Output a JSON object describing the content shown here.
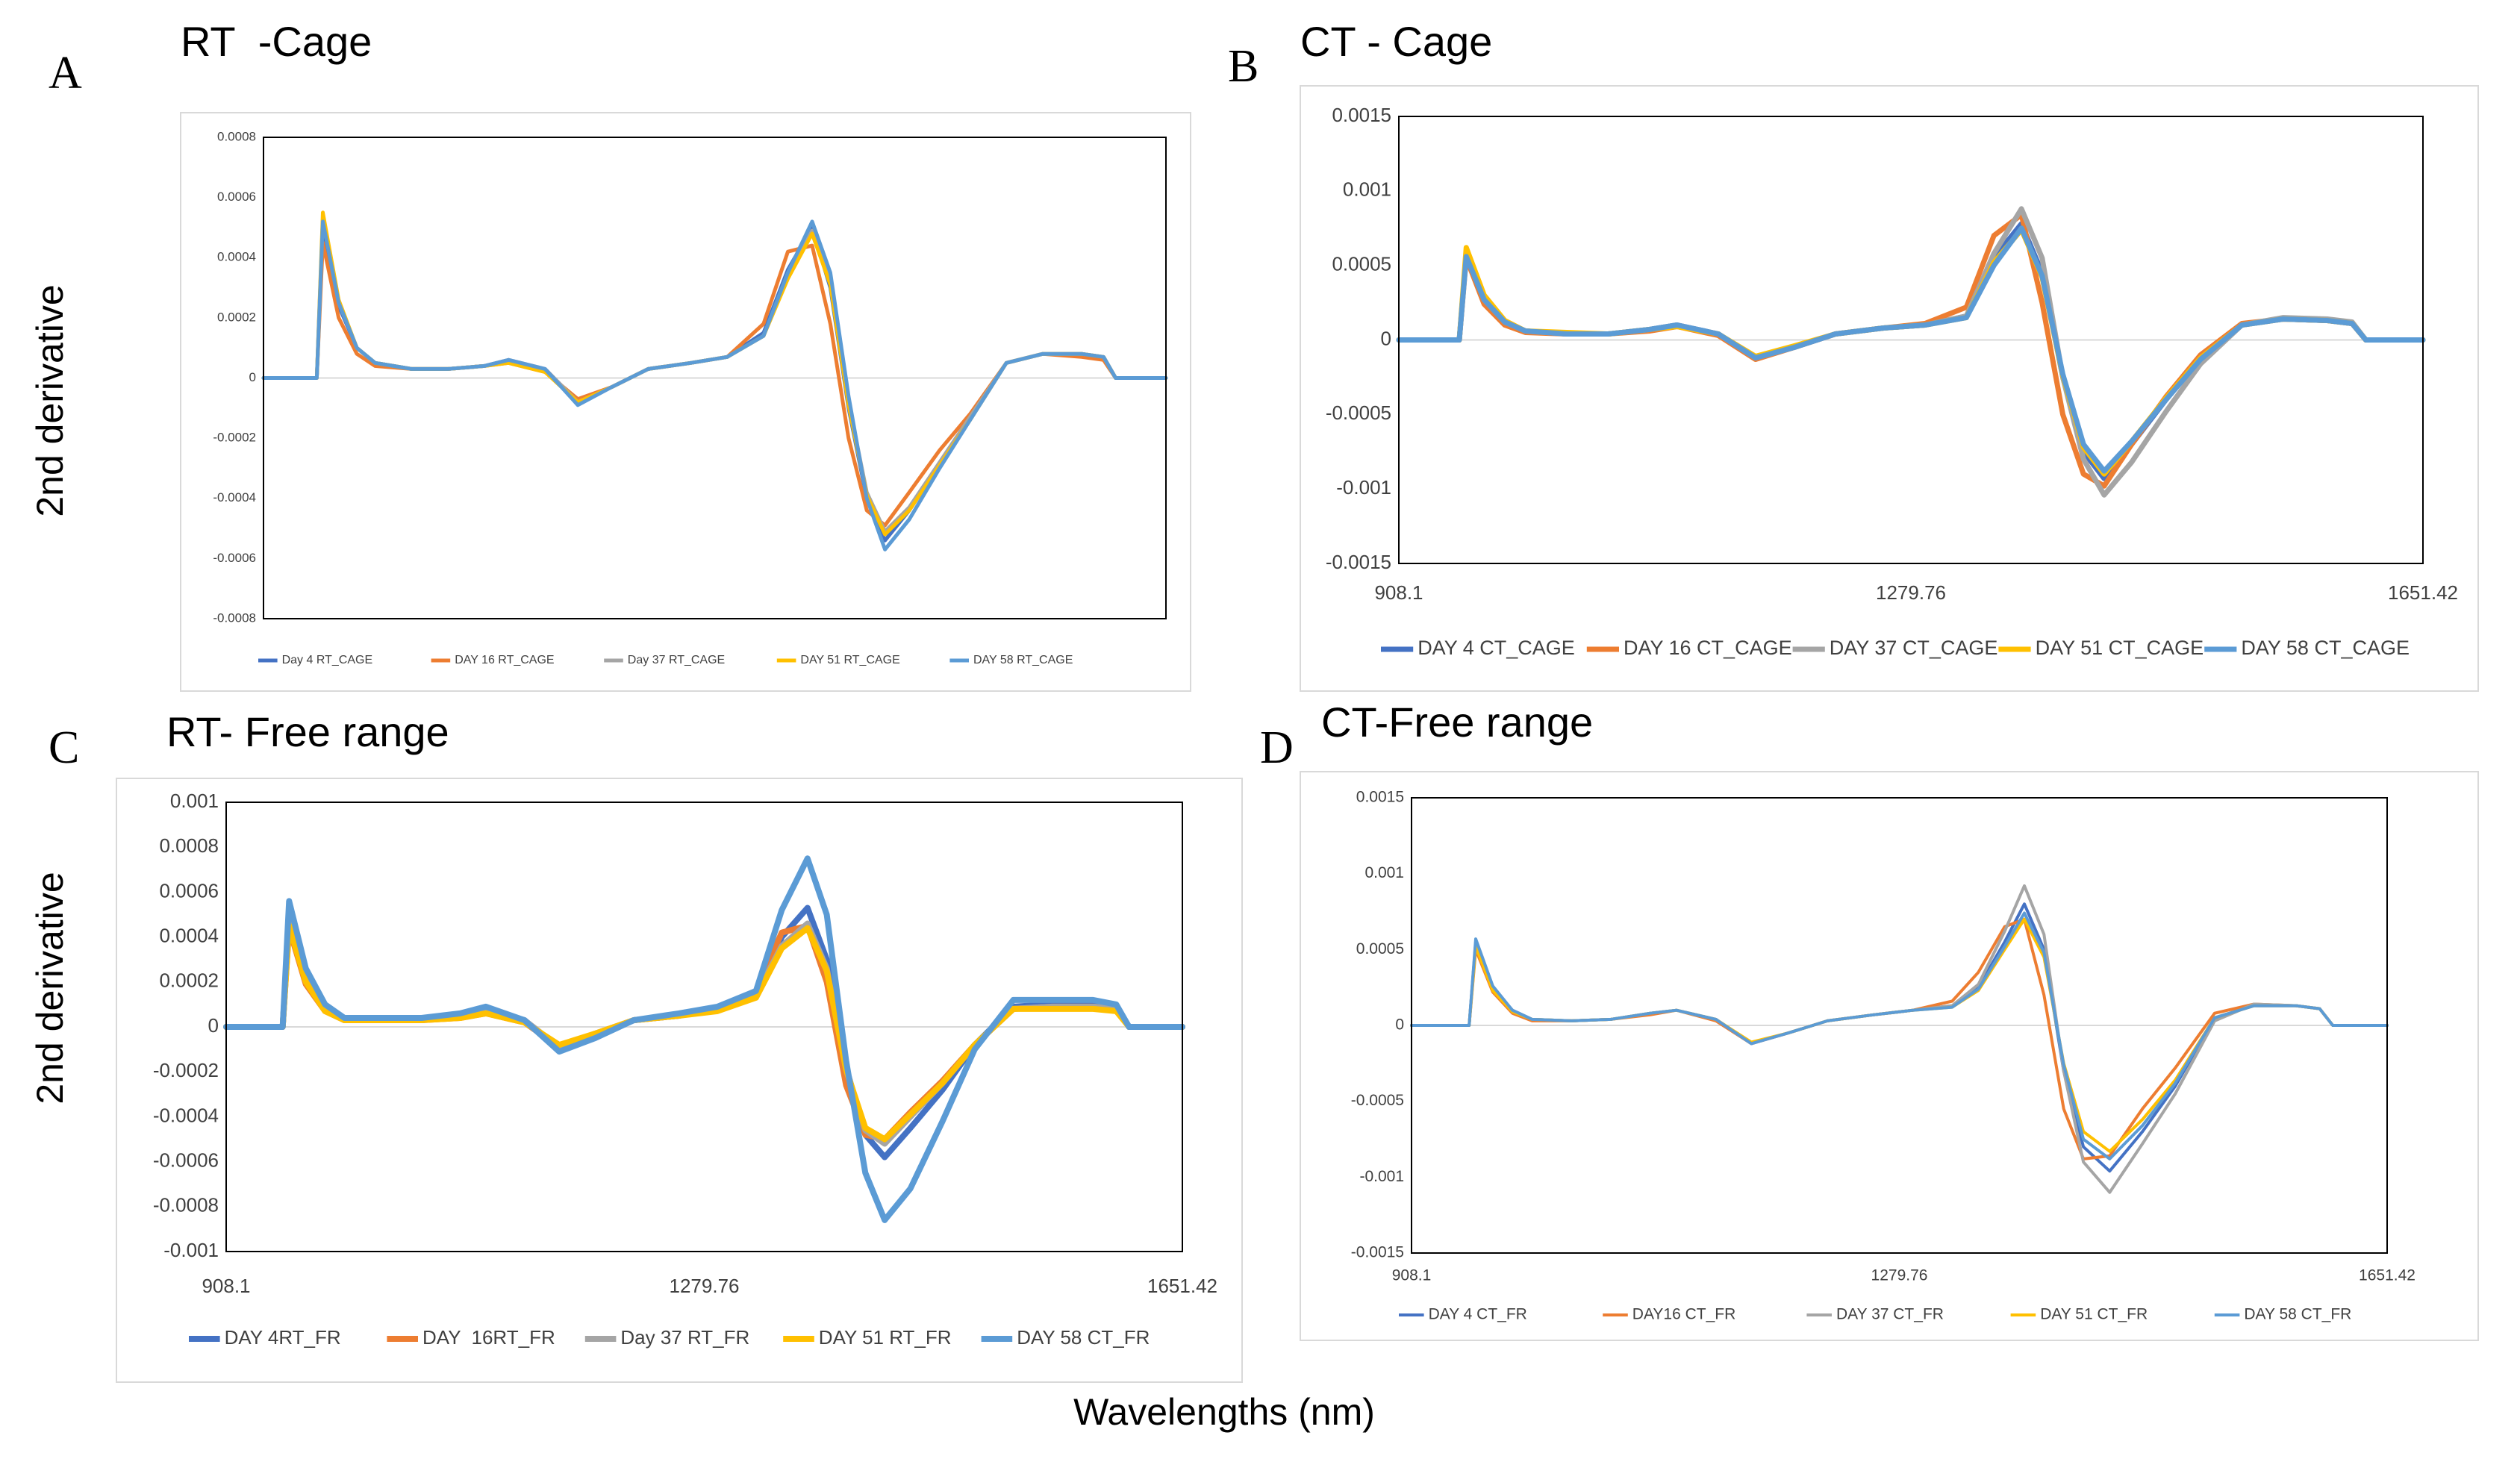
{
  "figure": {
    "xlabel": "Wavelengths (nm)"
  },
  "chart_data": [
    {
      "type": "line",
      "panel": "A",
      "title": "RT  -Cage",
      "ylabel": "2nd derivative",
      "x": [
        908.1,
        940,
        952,
        957,
        970,
        985,
        1000,
        1030,
        1060,
        1090,
        1110,
        1140,
        1167,
        1195,
        1225,
        1260,
        1290,
        1320,
        1340,
        1360,
        1375,
        1390,
        1405,
        1420,
        1440,
        1465,
        1490,
        1520,
        1550,
        1582,
        1600,
        1610,
        1651.42
      ],
      "xlim": [
        908.1,
        1651.42
      ],
      "ylim": [
        -0.0008,
        0.0008
      ],
      "yticks": [
        0.0008,
        0.0006,
        0.0004,
        0.0002,
        0,
        -0.0002,
        -0.0004,
        -0.0006,
        -0.0008
      ],
      "legend": "bottom",
      "series": [
        {
          "name": "Day 4 RT_CAGE",
          "color": "#4472c4",
          "values": [
            0,
            0,
            0,
            0.0005,
            0.00024,
            0.0001,
            5e-05,
            3e-05,
            3e-05,
            4e-05,
            6e-05,
            3e-05,
            -8e-05,
            -3e-05,
            3e-05,
            5e-05,
            7e-05,
            0.00015,
            0.00036,
            0.0005,
            0.0003,
            -0.0001,
            -0.0004,
            -0.00054,
            -0.00044,
            -0.00029,
            -0.00014,
            5e-05,
            8e-05,
            8e-05,
            7e-05,
            0,
            0
          ]
        },
        {
          "name": "DAY 16 RT_CAGE",
          "color": "#ed7d31",
          "values": [
            0,
            0,
            0,
            0.00045,
            0.0002,
            8e-05,
            4e-05,
            3e-05,
            3e-05,
            4e-05,
            5e-05,
            2e-05,
            -7e-05,
            -3e-05,
            3e-05,
            5e-05,
            7e-05,
            0.00018,
            0.00042,
            0.00044,
            0.00018,
            -0.0002,
            -0.00044,
            -0.00049,
            -0.00038,
            -0.00024,
            -0.00012,
            5e-05,
            8e-05,
            7e-05,
            6e-05,
            0,
            0
          ]
        },
        {
          "name": "Day 37 RT_CAGE",
          "color": "#a5a5a5",
          "values": [
            0,
            0,
            0,
            0.00053,
            0.00025,
            0.0001,
            5e-05,
            3e-05,
            3e-05,
            4e-05,
            6e-05,
            3e-05,
            -8e-05,
            -3e-05,
            3e-05,
            5e-05,
            7e-05,
            0.00014,
            0.00034,
            0.00049,
            0.00032,
            -8e-05,
            -0.00038,
            -0.00051,
            -0.00043,
            -0.00028,
            -0.00013,
            5e-05,
            8e-05,
            8e-05,
            7e-05,
            0,
            0
          ]
        },
        {
          "name": "DAY 51 RT_CAGE",
          "color": "#ffc000",
          "values": [
            0,
            0,
            0,
            0.00055,
            0.00026,
            0.0001,
            5e-05,
            3e-05,
            3e-05,
            4e-05,
            5e-05,
            2e-05,
            -8e-05,
            -3e-05,
            3e-05,
            5e-05,
            7e-05,
            0.00014,
            0.00033,
            0.00048,
            0.00031,
            -9e-05,
            -0.00039,
            -0.00052,
            -0.00044,
            -0.00029,
            -0.00014,
            5e-05,
            8e-05,
            8e-05,
            7e-05,
            0,
            0
          ]
        },
        {
          "name": "DAY 58 RT_CAGE",
          "color": "#5b9bd5",
          "values": [
            0,
            0,
            0,
            0.00052,
            0.00025,
            0.0001,
            5e-05,
            3e-05,
            3e-05,
            4e-05,
            6e-05,
            3e-05,
            -9e-05,
            -3e-05,
            3e-05,
            5e-05,
            7e-05,
            0.00014,
            0.00035,
            0.00052,
            0.00035,
            -6e-05,
            -0.0004,
            -0.00057,
            -0.00047,
            -0.0003,
            -0.00014,
            5e-05,
            8e-05,
            8e-05,
            7e-05,
            0,
            0
          ]
        }
      ]
    },
    {
      "type": "line",
      "panel": "B",
      "title": "CT - Cage",
      "x": [
        908.1,
        940,
        952,
        957,
        970,
        985,
        1000,
        1030,
        1060,
        1090,
        1110,
        1140,
        1167,
        1195,
        1225,
        1260,
        1290,
        1320,
        1340,
        1360,
        1375,
        1390,
        1405,
        1420,
        1440,
        1465,
        1490,
        1520,
        1550,
        1582,
        1600,
        1610,
        1651.42
      ],
      "xlim": [
        908.1,
        1651.42
      ],
      "xticks": [
        908.1,
        1279.76,
        1651.42
      ],
      "ylim": [
        -0.0015,
        0.0015
      ],
      "yticks": [
        0.0015,
        0.001,
        0.0005,
        0,
        -0.0005,
        -0.001,
        -0.0015
      ],
      "legend": "bottom",
      "series": [
        {
          "name": "DAY 4 CT_CAGE",
          "color": "#4472c4",
          "values": [
            0,
            0,
            0,
            0.00058,
            0.00028,
            0.00012,
            6e-05,
            4e-05,
            4e-05,
            7e-05,
            0.0001,
            4e-05,
            -0.00012,
            -5e-05,
            4e-05,
            8e-05,
            0.0001,
            0.00016,
            0.00055,
            0.00078,
            0.00045,
            -0.00025,
            -0.00075,
            -0.00093,
            -0.0007,
            -0.0004,
            -0.00012,
            0.0001,
            0.00014,
            0.00013,
            0.00011,
            0,
            0
          ]
        },
        {
          "name": "DAY 16 CT_CAGE",
          "color": "#ed7d31",
          "values": [
            0,
            0,
            0,
            0.00055,
            0.00024,
            0.0001,
            5e-05,
            4e-05,
            4e-05,
            6e-05,
            9e-05,
            3e-05,
            -0.00013,
            -5e-05,
            4e-05,
            8e-05,
            0.00011,
            0.00022,
            0.0007,
            0.00084,
            0.00025,
            -0.0005,
            -0.0009,
            -0.00098,
            -0.0007,
            -0.00038,
            -0.0001,
            0.00011,
            0.00014,
            0.00013,
            0.00011,
            0,
            0
          ]
        },
        {
          "name": "DAY 37 CT_CAGE",
          "color": "#a5a5a5",
          "values": [
            0,
            0,
            0,
            0.00057,
            0.00027,
            0.00012,
            6e-05,
            4e-05,
            4e-05,
            7e-05,
            0.0001,
            4e-05,
            -0.00012,
            -5e-05,
            4e-05,
            8e-05,
            0.0001,
            0.00016,
            0.00058,
            0.00088,
            0.00055,
            -0.00025,
            -0.0008,
            -0.00104,
            -0.00082,
            -0.00048,
            -0.00016,
            0.0001,
            0.00015,
            0.00014,
            0.00012,
            0,
            0
          ]
        },
        {
          "name": "DAY 51 CT_CAGE",
          "color": "#ffc000",
          "values": [
            0,
            0,
            0,
            0.00062,
            0.0003,
            0.00013,
            6e-05,
            5e-05,
            4e-05,
            7e-05,
            9e-05,
            4e-05,
            -0.00011,
            -4e-05,
            4e-05,
            8e-05,
            0.0001,
            0.00015,
            0.00052,
            0.00074,
            0.00042,
            -0.00024,
            -0.00072,
            -0.0009,
            -0.00068,
            -0.00039,
            -0.00012,
            0.0001,
            0.00014,
            0.00013,
            0.00011,
            0,
            0
          ]
        },
        {
          "name": "DAY 58 CT_CAGE",
          "color": "#5b9bd5",
          "values": [
            0,
            0,
            0,
            0.00056,
            0.00027,
            0.00012,
            6e-05,
            4e-05,
            4e-05,
            7e-05,
            0.0001,
            4e-05,
            -0.00012,
            -5e-05,
            4e-05,
            8e-05,
            0.0001,
            0.00015,
            0.0005,
            0.00075,
            0.00043,
            -0.00023,
            -0.0007,
            -0.00088,
            -0.00068,
            -0.0004,
            -0.00013,
            0.0001,
            0.00014,
            0.00013,
            0.00011,
            0,
            0
          ]
        }
      ]
    },
    {
      "type": "line",
      "panel": "C",
      "title": "RT- Free range",
      "ylabel": "2nd derivative",
      "x": [
        908.1,
        940,
        952,
        957,
        970,
        985,
        1000,
        1030,
        1060,
        1090,
        1110,
        1140,
        1167,
        1195,
        1225,
        1260,
        1290,
        1320,
        1340,
        1360,
        1375,
        1390,
        1405,
        1420,
        1440,
        1465,
        1490,
        1520,
        1550,
        1582,
        1600,
        1610,
        1651.42
      ],
      "xlim": [
        908.1,
        1651.42
      ],
      "xticks": [
        908.1,
        1279.76,
        1651.42
      ],
      "ylim": [
        -0.001,
        0.001
      ],
      "yticks": [
        0.001,
        0.0008,
        0.0006,
        0.0004,
        0.0002,
        0,
        -0.0002,
        -0.0004,
        -0.0006,
        -0.0008,
        -0.001
      ],
      "legend": "bottom",
      "series": [
        {
          "name": "DAY 4RT_FR",
          "color": "#4472c4",
          "values": [
            0,
            0,
            0,
            0.00048,
            0.00022,
            8e-05,
            3e-05,
            3e-05,
            3e-05,
            5e-05,
            8e-05,
            3e-05,
            -0.0001,
            -4e-05,
            3e-05,
            5e-05,
            8e-05,
            0.00014,
            0.0004,
            0.00053,
            0.0003,
            -0.00018,
            -0.00048,
            -0.00058,
            -0.00045,
            -0.00028,
            -8e-05,
            9e-05,
            0.0001,
            0.0001,
            9e-05,
            0,
            0
          ]
        },
        {
          "name": "DAY  16RT_FR",
          "color": "#ed7d31",
          "values": [
            0,
            0,
            0,
            0.00044,
            0.00019,
            7e-05,
            3e-05,
            3e-05,
            3e-05,
            4e-05,
            6e-05,
            2e-05,
            -9e-05,
            -3e-05,
            3e-05,
            5e-05,
            8e-05,
            0.00016,
            0.00042,
            0.00045,
            0.0002,
            -0.00026,
            -0.00048,
            -0.0005,
            -0.00038,
            -0.00024,
            -8e-05,
            8e-05,
            9e-05,
            9e-05,
            8e-05,
            0,
            0
          ]
        },
        {
          "name": "Day 37 RT_FR",
          "color": "#a5a5a5",
          "values": [
            0,
            0,
            0,
            0.00046,
            0.00021,
            8e-05,
            3e-05,
            3e-05,
            3e-05,
            5e-05,
            7e-05,
            3e-05,
            -9e-05,
            -3e-05,
            3e-05,
            5e-05,
            8e-05,
            0.00014,
            0.00036,
            0.00046,
            0.00026,
            -0.00019,
            -0.00046,
            -0.00052,
            -0.0004,
            -0.00025,
            -8e-05,
            8e-05,
            9e-05,
            9e-05,
            8e-05,
            0,
            0
          ]
        },
        {
          "name": "DAY 51 RT_FR",
          "color": "#ffc000",
          "values": [
            0,
            0,
            0,
            0.00045,
            0.0002,
            7e-05,
            3e-05,
            3e-05,
            3e-05,
            4e-05,
            6e-05,
            2e-05,
            -8e-05,
            -3e-05,
            3e-05,
            5e-05,
            7e-05,
            0.00013,
            0.00035,
            0.00044,
            0.00025,
            -0.00019,
            -0.00045,
            -0.0005,
            -0.00039,
            -0.00025,
            -8e-05,
            8e-05,
            8e-05,
            8e-05,
            7e-05,
            0,
            0
          ]
        },
        {
          "name": "DAY 58 CT_FR",
          "color": "#5b9bd5",
          "values": [
            0,
            0,
            0,
            0.00056,
            0.00026,
            0.0001,
            4e-05,
            4e-05,
            4e-05,
            6e-05,
            9e-05,
            3e-05,
            -0.00011,
            -5e-05,
            3e-05,
            6e-05,
            9e-05,
            0.00016,
            0.00052,
            0.00075,
            0.0005,
            -0.00015,
            -0.00065,
            -0.00086,
            -0.00072,
            -0.00042,
            -0.0001,
            0.00012,
            0.00012,
            0.00012,
            0.0001,
            0,
            0
          ]
        }
      ]
    },
    {
      "type": "line",
      "panel": "D",
      "title": "CT-Free range",
      "x": [
        908.1,
        940,
        952,
        957,
        970,
        985,
        1000,
        1030,
        1060,
        1090,
        1110,
        1140,
        1167,
        1195,
        1225,
        1260,
        1290,
        1320,
        1340,
        1360,
        1375,
        1390,
        1405,
        1420,
        1440,
        1465,
        1490,
        1520,
        1550,
        1582,
        1600,
        1610,
        1651.42
      ],
      "xlim": [
        908.1,
        1651.42
      ],
      "xticks": [
        908.1,
        1279.76,
        1651.42
      ],
      "ylim": [
        -0.0015,
        0.0015
      ],
      "yticks": [
        0.0015,
        0.001,
        0.0005,
        0,
        -0.0005,
        -0.001,
        -0.0015
      ],
      "legend": "bottom",
      "series": [
        {
          "name": "DAY 4 CT_FR",
          "color": "#4472c4",
          "values": [
            0,
            0,
            0,
            0.00055,
            0.00025,
            0.0001,
            4e-05,
            3e-05,
            4e-05,
            8e-05,
            0.0001,
            4e-05,
            -0.00012,
            -5e-05,
            3e-05,
            7e-05,
            0.0001,
            0.00013,
            0.00025,
            0.00055,
            0.0008,
            0.0005,
            -0.0003,
            -0.0008,
            -0.00096,
            -0.0007,
            -0.0004,
            5e-05,
            0.00013,
            0.00013,
            0.00011,
            0,
            0
          ]
        },
        {
          "name": "DAY16 CT_FR",
          "color": "#ed7d31",
          "values": [
            0,
            0,
            0,
            0.0005,
            0.00022,
            8e-05,
            3e-05,
            3e-05,
            4e-05,
            7e-05,
            0.0001,
            3e-05,
            -0.00012,
            -5e-05,
            3e-05,
            7e-05,
            0.0001,
            0.00016,
            0.00035,
            0.00065,
            0.0007,
            0.0002,
            -0.00055,
            -0.00088,
            -0.00086,
            -0.00055,
            -0.00028,
            8e-05,
            0.00014,
            0.00013,
            0.00011,
            0,
            0
          ]
        },
        {
          "name": "DAY 37 CT_FR",
          "color": "#a5a5a5",
          "values": [
            0,
            0,
            0,
            0.00055,
            0.00025,
            0.0001,
            4e-05,
            3e-05,
            4e-05,
            8e-05,
            0.0001,
            4e-05,
            -0.00012,
            -5e-05,
            3e-05,
            7e-05,
            0.0001,
            0.00013,
            0.00027,
            0.00062,
            0.00092,
            0.0006,
            -0.0003,
            -0.0009,
            -0.0011,
            -0.00078,
            -0.00045,
            3e-05,
            0.00014,
            0.00013,
            0.00011,
            0,
            0
          ]
        },
        {
          "name": "DAY 51 CT_FR",
          "color": "#ffc000",
          "values": [
            0,
            0,
            0,
            0.00052,
            0.00023,
            9e-05,
            4e-05,
            3e-05,
            4e-05,
            8e-05,
            0.0001,
            4e-05,
            -0.00011,
            -5e-05,
            3e-05,
            7e-05,
            0.0001,
            0.00012,
            0.00023,
            0.0005,
            0.0007,
            0.00045,
            -0.00025,
            -0.0007,
            -0.00083,
            -0.00062,
            -0.00036,
            5e-05,
            0.00013,
            0.00013,
            0.00011,
            0,
            0
          ]
        },
        {
          "name": "DAY 58 CT_FR",
          "color": "#5b9bd5",
          "values": [
            0,
            0,
            0,
            0.00057,
            0.00026,
            0.0001,
            4e-05,
            3e-05,
            4e-05,
            8e-05,
            0.0001,
            4e-05,
            -0.00012,
            -5e-05,
            3e-05,
            7e-05,
            0.0001,
            0.00012,
            0.00024,
            0.00052,
            0.00074,
            0.00048,
            -0.00026,
            -0.00075,
            -0.00088,
            -0.00066,
            -0.00038,
            5e-05,
            0.00013,
            0.00013,
            0.00011,
            0,
            0
          ]
        }
      ]
    }
  ]
}
